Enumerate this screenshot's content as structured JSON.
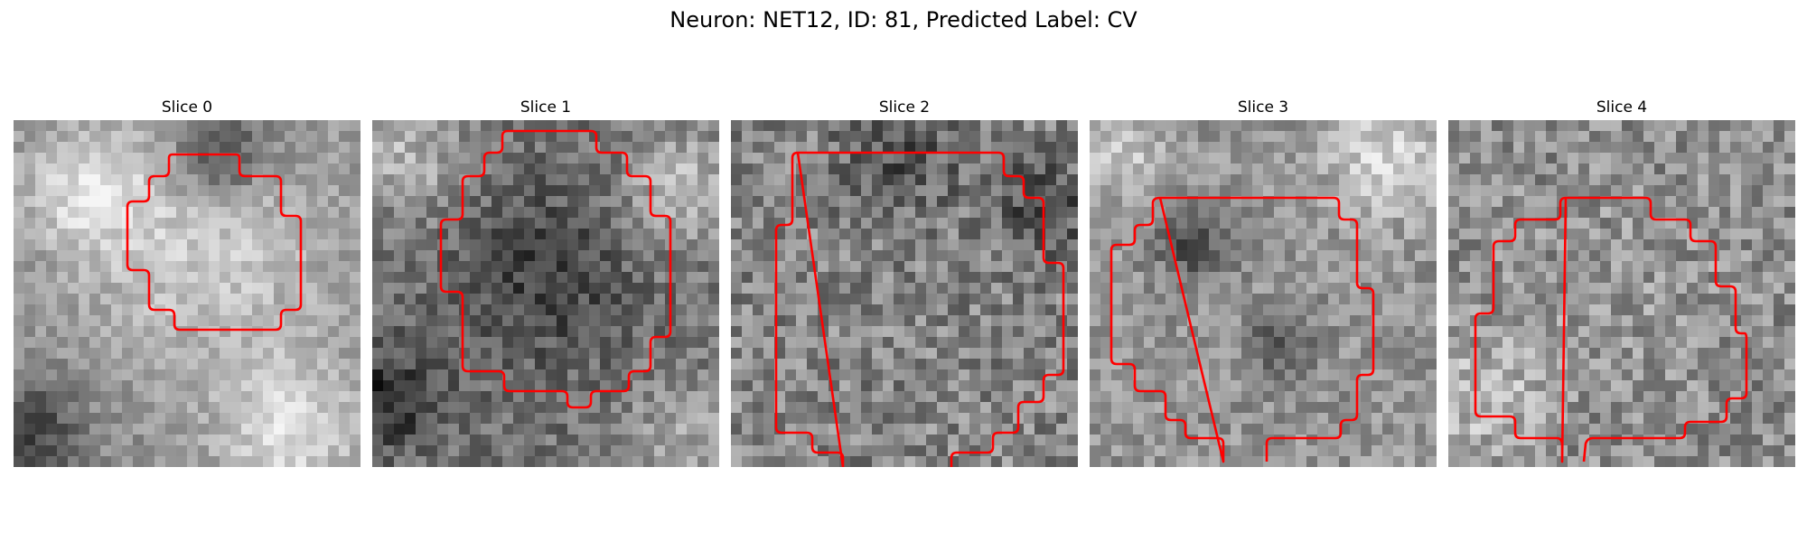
{
  "figure": {
    "title": "Neuron: NET12, ID: 81, Predicted Label: CV"
  },
  "colors": {
    "contour": "#ff0000",
    "background": "#ffffff"
  },
  "slices": [
    {
      "title": "Slice 0"
    },
    {
      "title": "Slice 1"
    },
    {
      "title": "Slice 2"
    },
    {
      "title": "Slice 3"
    },
    {
      "title": "Slice 4"
    }
  ]
}
